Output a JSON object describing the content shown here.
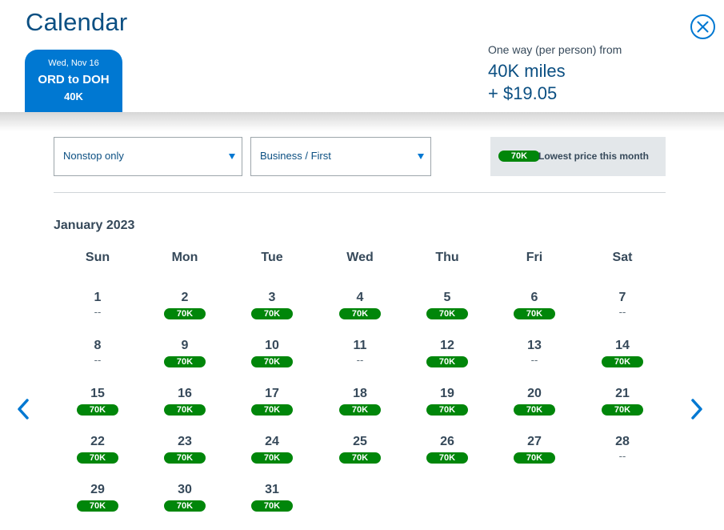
{
  "header": {
    "title": "Calendar",
    "close_icon": "close-circle-icon",
    "route_tab": {
      "date": "Wed, Nov 16",
      "route": "ORD to DOH",
      "price": "40K"
    },
    "fare": {
      "label": "One way (per person) from",
      "miles": "40K miles",
      "cash": "+ $19.05"
    }
  },
  "filters": {
    "stops": "Nonstop only",
    "cabin": "Business / First",
    "legend_badge": "70K",
    "legend_text": "Lowest price this month"
  },
  "calendar": {
    "month_title": "January 2023",
    "weekdays": [
      "Sun",
      "Mon",
      "Tue",
      "Wed",
      "Thu",
      "Fri",
      "Sat"
    ],
    "weeks": [
      [
        {
          "day": "1",
          "price": "--"
        },
        {
          "day": "2",
          "price": "70K"
        },
        {
          "day": "3",
          "price": "70K"
        },
        {
          "day": "4",
          "price": "70K"
        },
        {
          "day": "5",
          "price": "70K"
        },
        {
          "day": "6",
          "price": "70K"
        },
        {
          "day": "7",
          "price": "--"
        }
      ],
      [
        {
          "day": "8",
          "price": "--"
        },
        {
          "day": "9",
          "price": "70K"
        },
        {
          "day": "10",
          "price": "70K"
        },
        {
          "day": "11",
          "price": "--"
        },
        {
          "day": "12",
          "price": "70K"
        },
        {
          "day": "13",
          "price": "--"
        },
        {
          "day": "14",
          "price": "70K"
        }
      ],
      [
        {
          "day": "15",
          "price": "70K"
        },
        {
          "day": "16",
          "price": "70K"
        },
        {
          "day": "17",
          "price": "70K"
        },
        {
          "day": "18",
          "price": "70K"
        },
        {
          "day": "19",
          "price": "70K"
        },
        {
          "day": "20",
          "price": "70K"
        },
        {
          "day": "21",
          "price": "70K"
        }
      ],
      [
        {
          "day": "22",
          "price": "70K"
        },
        {
          "day": "23",
          "price": "70K"
        },
        {
          "day": "24",
          "price": "70K"
        },
        {
          "day": "25",
          "price": "70K"
        },
        {
          "day": "26",
          "price": "70K"
        },
        {
          "day": "27",
          "price": "70K"
        },
        {
          "day": "28",
          "price": "--"
        }
      ],
      [
        {
          "day": "29",
          "price": "70K"
        },
        {
          "day": "30",
          "price": "70K"
        },
        {
          "day": "31",
          "price": "70K"
        }
      ]
    ],
    "prev_icon": "chevron-left-icon",
    "next_icon": "chevron-right-icon"
  },
  "colors": {
    "brand_blue": "#0078d2",
    "dark_blue": "#0b4f82",
    "price_green": "#00860a",
    "text": "#36495a"
  }
}
